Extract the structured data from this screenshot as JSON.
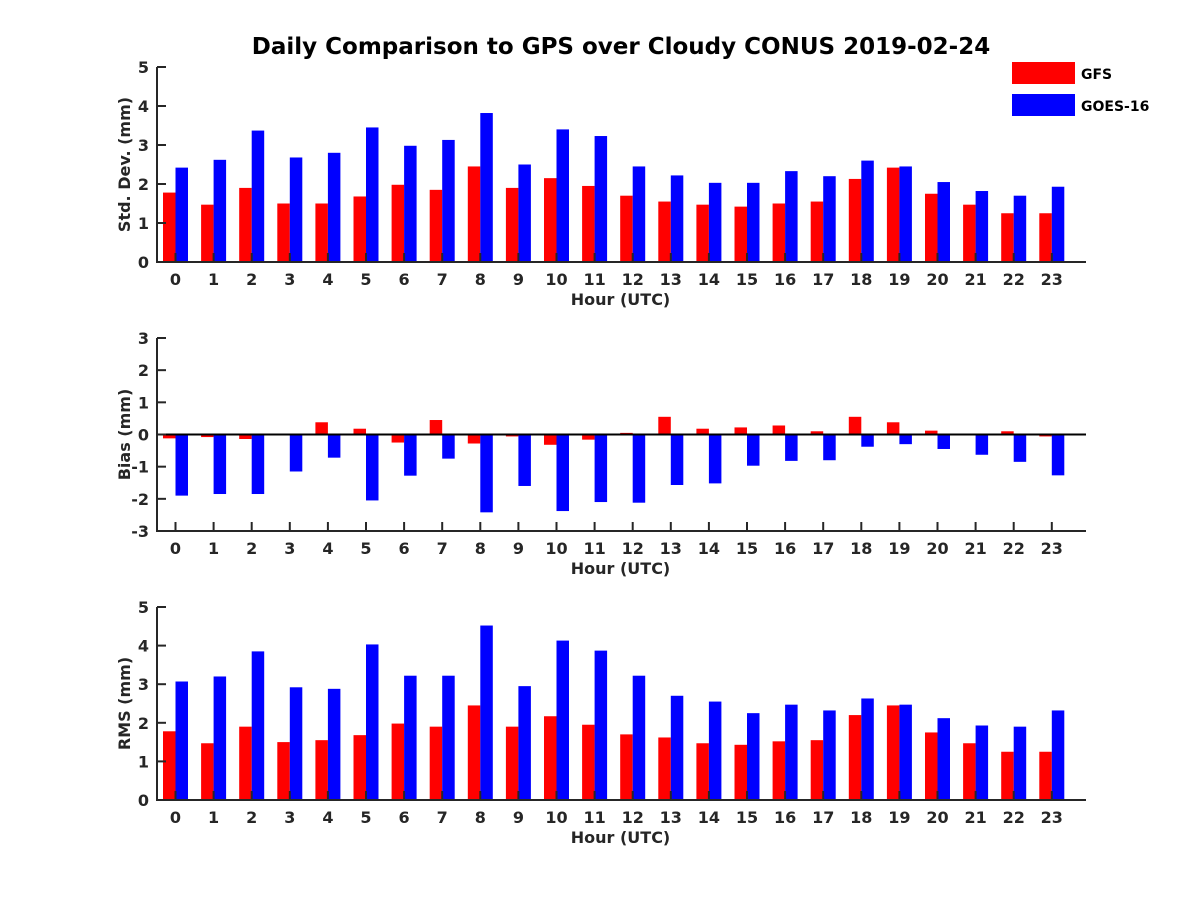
{
  "title": "Daily Comparison to GPS over Cloudy CONUS 2019-02-24",
  "colors": {
    "GFS": "#ff0000",
    "GOES-16": "#0000ff",
    "axis": "#262626"
  },
  "legend": [
    {
      "name": "GFS",
      "color": "#ff0000"
    },
    {
      "name": "GOES-16",
      "color": "#0000ff"
    }
  ],
  "chart_data": [
    {
      "type": "bar",
      "title": "Daily Comparison to GPS over Cloudy CONUS 2019-02-24",
      "xlabel": "Hour (UTC)",
      "ylabel": "Std. Dev. (mm)",
      "ylim": [
        0,
        5
      ],
      "yticks": [
        0,
        1,
        2,
        3,
        4,
        5
      ],
      "categories": [
        "0",
        "1",
        "2",
        "3",
        "4",
        "5",
        "6",
        "7",
        "8",
        "9",
        "10",
        "11",
        "12",
        "13",
        "14",
        "15",
        "16",
        "17",
        "18",
        "19",
        "20",
        "21",
        "22",
        "23"
      ],
      "series": [
        {
          "name": "GFS",
          "values": [
            1.78,
            1.47,
            1.9,
            1.5,
            1.5,
            1.68,
            1.98,
            1.85,
            2.45,
            1.9,
            2.15,
            1.95,
            1.7,
            1.55,
            1.47,
            1.42,
            1.5,
            1.55,
            2.13,
            2.42,
            1.75,
            1.47,
            1.25,
            1.25
          ]
        },
        {
          "name": "GOES-16",
          "values": [
            2.42,
            2.62,
            3.37,
            2.68,
            2.8,
            3.45,
            2.98,
            3.13,
            3.82,
            2.5,
            3.4,
            3.23,
            2.45,
            2.22,
            2.03,
            2.03,
            2.33,
            2.2,
            2.6,
            2.45,
            2.05,
            1.82,
            1.7,
            1.93
          ]
        }
      ]
    },
    {
      "type": "bar",
      "xlabel": "Hour (UTC)",
      "ylabel": "Bias (mm)",
      "ylim": [
        -3,
        3
      ],
      "yticks": [
        -3,
        -2,
        -1,
        0,
        1,
        2,
        3
      ],
      "zero_line": true,
      "categories": [
        "0",
        "1",
        "2",
        "3",
        "4",
        "5",
        "6",
        "7",
        "8",
        "9",
        "10",
        "11",
        "12",
        "13",
        "14",
        "15",
        "16",
        "17",
        "18",
        "19",
        "20",
        "21",
        "22",
        "23"
      ],
      "series": [
        {
          "name": "GFS",
          "values": [
            -0.12,
            -0.08,
            -0.14,
            0.0,
            0.38,
            0.18,
            -0.25,
            0.45,
            -0.28,
            -0.06,
            -0.32,
            -0.16,
            0.05,
            0.55,
            0.18,
            0.22,
            0.28,
            0.1,
            0.55,
            0.38,
            0.12,
            0.0,
            0.1,
            -0.06
          ]
        },
        {
          "name": "GOES-16",
          "values": [
            -1.9,
            -1.85,
            -1.85,
            -1.15,
            -0.72,
            -2.05,
            -1.28,
            -0.75,
            -2.42,
            -1.6,
            -2.38,
            -2.1,
            -2.12,
            -1.57,
            -1.52,
            -0.97,
            -0.82,
            -0.8,
            -0.38,
            -0.3,
            -0.45,
            -0.63,
            -0.85,
            -1.27
          ]
        }
      ]
    },
    {
      "type": "bar",
      "xlabel": "Hour (UTC)",
      "ylabel": "RMS (mm)",
      "ylim": [
        0,
        5
      ],
      "yticks": [
        0,
        1,
        2,
        3,
        4,
        5
      ],
      "categories": [
        "0",
        "1",
        "2",
        "3",
        "4",
        "5",
        "6",
        "7",
        "8",
        "9",
        "10",
        "11",
        "12",
        "13",
        "14",
        "15",
        "16",
        "17",
        "18",
        "19",
        "20",
        "21",
        "22",
        "23"
      ],
      "series": [
        {
          "name": "GFS",
          "values": [
            1.78,
            1.47,
            1.9,
            1.5,
            1.55,
            1.68,
            1.98,
            1.9,
            2.45,
            1.9,
            2.17,
            1.95,
            1.7,
            1.62,
            1.47,
            1.43,
            1.52,
            1.55,
            2.2,
            2.45,
            1.75,
            1.47,
            1.25,
            1.25
          ]
        },
        {
          "name": "GOES-16",
          "values": [
            3.07,
            3.2,
            3.85,
            2.92,
            2.88,
            4.03,
            3.22,
            3.22,
            4.52,
            2.95,
            4.13,
            3.87,
            3.22,
            2.7,
            2.55,
            2.25,
            2.47,
            2.32,
            2.63,
            2.47,
            2.12,
            1.93,
            1.9,
            2.32
          ]
        }
      ]
    }
  ]
}
